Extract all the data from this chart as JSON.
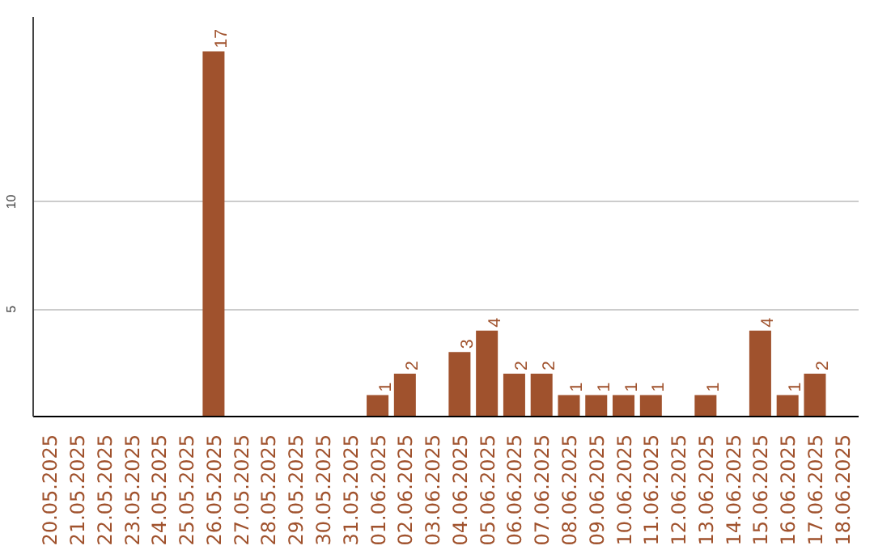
{
  "chart_data": {
    "type": "bar",
    "categories": [
      "20.05.2025",
      "21.05.2025",
      "22.05.2025",
      "23.05.2025",
      "24.05.2025",
      "25.05.2025",
      "26.05.2025",
      "27.05.2025",
      "28.05.2025",
      "29.05.2025",
      "30.05.2025",
      "31.05.2025",
      "01.06.2025",
      "02.06.2025",
      "03.06.2025",
      "04.06.2025",
      "05.06.2025",
      "06.06.2025",
      "07.06.2025",
      "08.06.2025",
      "09.06.2025",
      "10.06.2025",
      "11.06.2025",
      "12.06.2025",
      "13.06.2025",
      "14.06.2025",
      "15.06.2025",
      "16.06.2025",
      "17.06.2025",
      "18.06.2025"
    ],
    "values": [
      0,
      0,
      0,
      0,
      0,
      0,
      17,
      0,
      0,
      0,
      0,
      0,
      1,
      2,
      0,
      3,
      4,
      2,
      2,
      1,
      1,
      1,
      1,
      0,
      1,
      0,
      4,
      1,
      2,
      0
    ],
    "value_labels": [
      null,
      null,
      null,
      null,
      null,
      null,
      "17",
      null,
      null,
      null,
      null,
      null,
      "1",
      "2",
      null,
      "3",
      "4",
      "2",
      "2",
      "1",
      "1",
      "1",
      "1",
      null,
      "1",
      null,
      "4",
      "1",
      "2",
      null
    ],
    "color": "#a0522d",
    "ylim": [
      0,
      18.6
    ],
    "yticks": [
      5,
      10
    ],
    "grid": "y"
  }
}
